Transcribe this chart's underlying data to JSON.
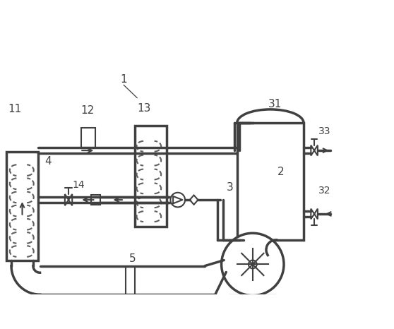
{
  "bg_color": "#ffffff",
  "line_color": "#404040",
  "coil_color": "#606060",
  "lw": 1.5,
  "lw2": 2.5
}
